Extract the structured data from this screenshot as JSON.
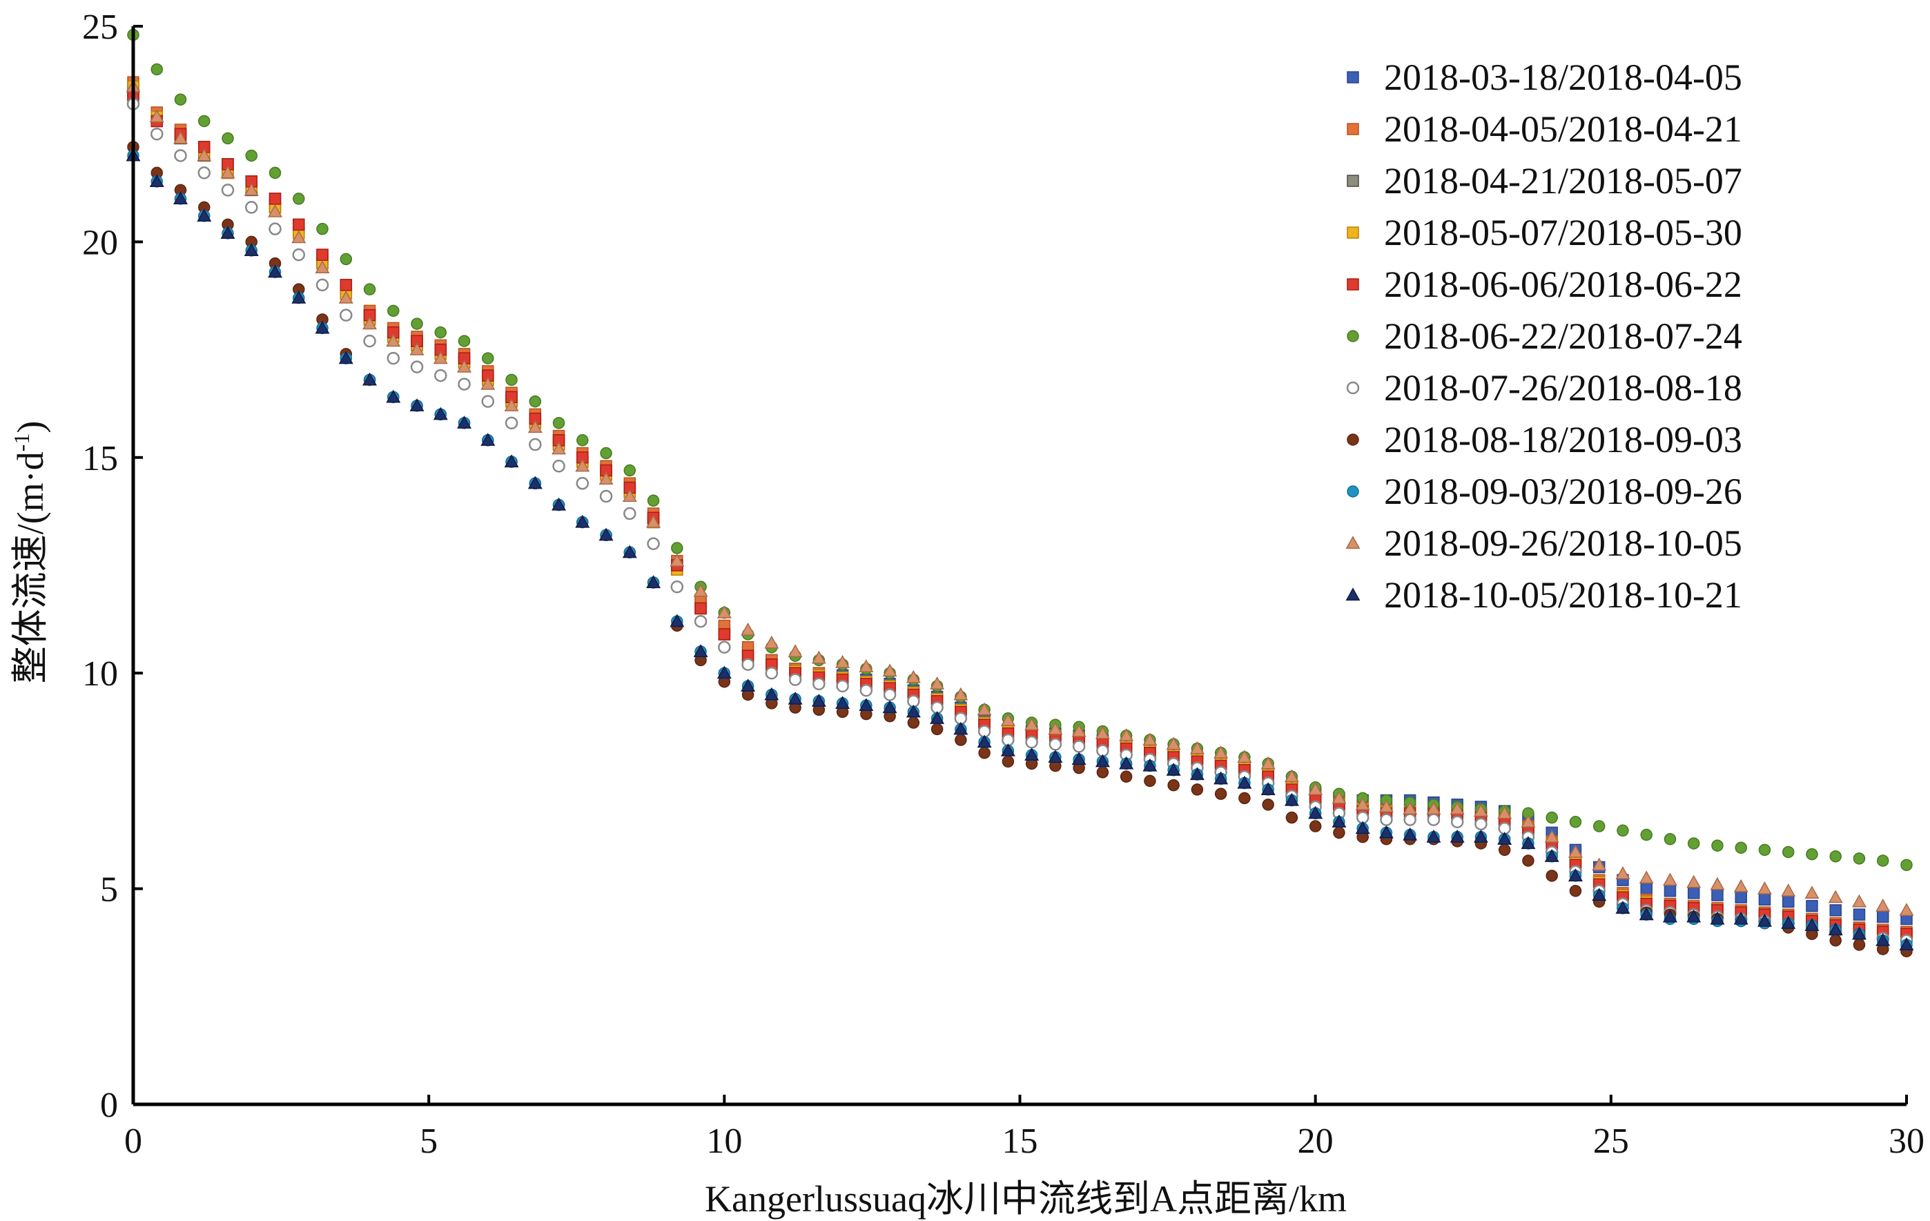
{
  "chart_data": {
    "type": "scatter",
    "title": "",
    "xlabel": "Kangerlussuaq冰川中流线到A点距离/km",
    "ylabel": "整体流速/(m·d-1)",
    "ylabel_parts": {
      "main": "整体流速/(m·d",
      "sup": "-1",
      "close": ")"
    },
    "xlim": [
      0,
      30
    ],
    "ylim": [
      0,
      25
    ],
    "x_ticks": [
      0,
      5,
      10,
      15,
      20,
      25,
      30
    ],
    "x_tick_labels": [
      "0",
      "5",
      "10",
      "15",
      "20",
      "25",
      "30"
    ],
    "y_ticks": [
      0,
      5,
      10,
      15,
      20,
      25
    ],
    "y_tick_labels": [
      "0",
      "5",
      "10",
      "15",
      "20",
      "25"
    ],
    "grid": false,
    "legend_position": "top-right",
    "x": [
      0,
      0.4,
      0.8,
      1.2,
      1.6,
      2,
      2.4,
      2.8,
      3.2,
      3.6,
      4,
      4.4,
      4.8,
      5.2,
      5.6,
      6,
      6.4,
      6.8,
      7.2,
      7.6,
      8,
      8.4,
      8.8,
      9.2,
      9.6,
      10,
      10.4,
      10.8,
      11.2,
      11.6,
      12,
      12.4,
      12.8,
      13.2,
      13.6,
      14,
      14.4,
      14.8,
      15.2,
      15.6,
      16,
      16.4,
      16.8,
      17.2,
      17.6,
      18,
      18.4,
      18.8,
      19.2,
      19.6,
      20,
      20.4,
      20.8,
      21.2,
      21.6,
      22,
      22.4,
      22.8,
      23.2,
      23.6,
      24,
      24.4,
      24.8,
      25.2,
      25.6,
      26,
      26.4,
      26.8,
      27.2,
      27.6,
      28,
      28.4,
      28.8,
      29.2,
      29.6,
      30
    ],
    "series": [
      {
        "name": "2018-03-18/2018-04-05",
        "marker": "square",
        "color": "#3b5fb4",
        "stroke": "#2a4590",
        "values": [
          23.5,
          22.9,
          22.5,
          22.2,
          21.8,
          21.4,
          20.9,
          20.3,
          19.6,
          18.9,
          18.3,
          17.9,
          17.7,
          17.5,
          17.3,
          16.9,
          16.4,
          15.9,
          15.4,
          15.0,
          14.7,
          14.3,
          13.6,
          12.5,
          11.6,
          11.0,
          10.5,
          10.3,
          10.1,
          10.0,
          9.95,
          9.85,
          9.75,
          9.6,
          9.45,
          9.2,
          8.9,
          8.7,
          8.65,
          8.6,
          8.55,
          8.45,
          8.35,
          8.25,
          8.15,
          8.05,
          7.95,
          7.85,
          7.7,
          7.4,
          7.2,
          7.1,
          7.05,
          7.05,
          7.05,
          7.0,
          6.95,
          6.9,
          6.8,
          6.6,
          6.3,
          5.9,
          5.5,
          5.2,
          5.0,
          4.95,
          4.9,
          4.85,
          4.8,
          4.75,
          4.7,
          4.6,
          4.5,
          4.4,
          4.35,
          4.3
        ]
      },
      {
        "name": "2018-04-05/2018-04-21",
        "marker": "square",
        "color": "#e2713a",
        "stroke": "#b85420",
        "values": [
          23.7,
          23.0,
          22.6,
          22.2,
          21.8,
          21.4,
          21.0,
          20.4,
          19.7,
          19.0,
          18.4,
          18.0,
          17.8,
          17.6,
          17.4,
          17.0,
          16.5,
          16.0,
          15.5,
          15.1,
          14.8,
          14.4,
          13.7,
          12.6,
          11.7,
          11.1,
          10.6,
          10.3,
          10.1,
          10.0,
          9.9,
          9.8,
          9.7,
          9.55,
          9.4,
          9.15,
          8.85,
          8.65,
          8.6,
          8.55,
          8.5,
          8.4,
          8.3,
          8.2,
          8.1,
          8.0,
          7.9,
          7.8,
          7.65,
          7.35,
          7.15,
          7.0,
          6.9,
          6.85,
          6.85,
          6.85,
          6.8,
          6.75,
          6.65,
          6.45,
          6.1,
          5.7,
          5.2,
          4.9,
          4.75,
          4.65,
          4.6,
          4.55,
          4.5,
          4.45,
          4.4,
          4.3,
          4.2,
          4.1,
          4.05,
          4.0
        ]
      },
      {
        "name": "2018-04-21/2018-05-07",
        "marker": "square",
        "color": "#8e8e80",
        "stroke": "#4a4a40",
        "values": [
          23.4,
          22.8,
          22.4,
          22.0,
          21.6,
          21.2,
          20.8,
          20.2,
          19.5,
          18.8,
          18.2,
          17.8,
          17.6,
          17.4,
          17.2,
          16.8,
          16.3,
          15.8,
          15.3,
          14.9,
          14.6,
          14.2,
          13.5,
          12.4,
          11.5,
          10.9,
          10.4,
          10.2,
          10.05,
          9.95,
          9.9,
          9.8,
          9.7,
          9.55,
          9.4,
          9.15,
          8.85,
          8.65,
          8.6,
          8.55,
          8.5,
          8.4,
          8.3,
          8.2,
          8.1,
          8.0,
          7.9,
          7.8,
          7.65,
          7.35,
          7.1,
          6.95,
          6.85,
          6.8,
          6.8,
          6.8,
          6.75,
          6.7,
          6.6,
          6.4,
          6.05,
          5.6,
          5.15,
          4.85,
          4.7,
          4.6,
          4.55,
          4.5,
          4.45,
          4.4,
          4.35,
          4.25,
          4.15,
          4.05,
          4.0,
          3.95
        ]
      },
      {
        "name": "2018-05-07/2018-05-30",
        "marker": "square",
        "color": "#f0b21e",
        "stroke": "#b8820a",
        "values": [
          23.6,
          22.9,
          22.5,
          22.1,
          21.6,
          21.3,
          20.8,
          20.2,
          19.5,
          18.8,
          18.2,
          17.8,
          17.6,
          17.4,
          17.2,
          16.8,
          16.3,
          15.8,
          15.3,
          14.9,
          14.6,
          14.2,
          13.5,
          12.4,
          11.5,
          10.9,
          10.4,
          10.2,
          10.05,
          9.95,
          9.9,
          9.8,
          9.7,
          9.55,
          9.4,
          9.15,
          8.85,
          8.65,
          8.6,
          8.55,
          8.5,
          8.4,
          8.3,
          8.2,
          8.1,
          8.0,
          7.9,
          7.8,
          7.65,
          7.35,
          7.1,
          6.95,
          6.85,
          6.8,
          6.8,
          6.8,
          6.75,
          6.7,
          6.6,
          6.4,
          6.05,
          5.6,
          5.15,
          4.85,
          4.7,
          4.6,
          4.55,
          4.5,
          4.45,
          4.4,
          4.35,
          4.25,
          4.15,
          4.05,
          4.0,
          3.95
        ]
      },
      {
        "name": "2018-06-06/2018-06-22",
        "marker": "square",
        "color": "#e03a2e",
        "stroke": "#a81f15",
        "values": [
          23.4,
          22.8,
          22.5,
          22.2,
          21.8,
          21.4,
          21.0,
          20.4,
          19.7,
          19.0,
          18.3,
          17.9,
          17.7,
          17.5,
          17.3,
          16.9,
          16.4,
          15.9,
          15.4,
          15.0,
          14.7,
          14.3,
          13.6,
          12.5,
          11.5,
          10.9,
          10.4,
          10.2,
          10.0,
          9.9,
          9.85,
          9.75,
          9.65,
          9.5,
          9.35,
          9.1,
          8.8,
          8.6,
          8.55,
          8.5,
          8.45,
          8.35,
          8.25,
          8.15,
          8.05,
          7.95,
          7.85,
          7.75,
          7.6,
          7.3,
          7.05,
          6.9,
          6.8,
          6.75,
          6.75,
          6.75,
          6.7,
          6.65,
          6.55,
          6.35,
          6.0,
          5.55,
          5.1,
          4.8,
          4.65,
          4.6,
          4.55,
          4.5,
          4.45,
          4.4,
          4.35,
          4.25,
          4.15,
          4.05,
          4.0,
          3.95
        ]
      },
      {
        "name": "2018-06-22/2018-07-24",
        "marker": "circle",
        "color": "#62a033",
        "stroke": "#477a20",
        "values": [
          24.8,
          24.0,
          23.3,
          22.8,
          22.4,
          22.0,
          21.6,
          21.0,
          20.3,
          19.6,
          18.9,
          18.4,
          18.1,
          17.9,
          17.7,
          17.3,
          16.8,
          16.3,
          15.8,
          15.4,
          15.1,
          14.7,
          14.0,
          12.9,
          12.0,
          11.4,
          10.9,
          10.6,
          10.4,
          10.3,
          10.2,
          10.1,
          10.0,
          9.85,
          9.7,
          9.45,
          9.15,
          8.95,
          8.85,
          8.8,
          8.75,
          8.65,
          8.55,
          8.45,
          8.35,
          8.25,
          8.15,
          8.05,
          7.9,
          7.6,
          7.35,
          7.2,
          7.1,
          7.05,
          7.0,
          6.95,
          6.9,
          6.85,
          6.8,
          6.75,
          6.65,
          6.55,
          6.45,
          6.35,
          6.25,
          6.15,
          6.05,
          6.0,
          5.95,
          5.9,
          5.85,
          5.8,
          5.75,
          5.7,
          5.65,
          5.55
        ]
      },
      {
        "name": "2018-07-26/2018-08-18",
        "marker": "circle-open",
        "color": "#ffffff",
        "stroke": "#888888",
        "values": [
          23.2,
          22.5,
          22.0,
          21.6,
          21.2,
          20.8,
          20.3,
          19.7,
          19.0,
          18.3,
          17.7,
          17.3,
          17.1,
          16.9,
          16.7,
          16.3,
          15.8,
          15.3,
          14.8,
          14.4,
          14.1,
          13.7,
          13.0,
          12.0,
          11.2,
          10.6,
          10.2,
          10.0,
          9.85,
          9.75,
          9.7,
          9.6,
          9.5,
          9.35,
          9.2,
          8.95,
          8.65,
          8.45,
          8.4,
          8.35,
          8.3,
          8.2,
          8.1,
          8.0,
          7.9,
          7.8,
          7.7,
          7.6,
          7.45,
          7.15,
          6.9,
          6.75,
          6.65,
          6.6,
          6.6,
          6.6,
          6.55,
          6.5,
          6.4,
          6.2,
          5.85,
          5.4,
          4.95,
          4.65,
          4.5,
          4.45,
          4.4,
          4.35,
          4.3,
          4.25,
          4.2,
          4.1,
          4.0,
          3.9,
          3.85,
          3.8
        ]
      },
      {
        "name": "2018-08-18/2018-09-03",
        "marker": "circle",
        "color": "#7a3418",
        "stroke": "#5a2410",
        "values": [
          22.2,
          21.6,
          21.2,
          20.8,
          20.4,
          20.0,
          19.5,
          18.9,
          18.2,
          17.4,
          16.8,
          16.4,
          16.2,
          16.0,
          15.8,
          15.4,
          14.9,
          14.4,
          13.9,
          13.5,
          13.2,
          12.8,
          12.1,
          11.1,
          10.3,
          9.8,
          9.5,
          9.3,
          9.2,
          9.15,
          9.1,
          9.05,
          9.0,
          8.85,
          8.7,
          8.45,
          8.15,
          7.95,
          7.9,
          7.85,
          7.8,
          7.7,
          7.6,
          7.5,
          7.4,
          7.3,
          7.2,
          7.1,
          6.95,
          6.65,
          6.45,
          6.3,
          6.2,
          6.15,
          6.15,
          6.15,
          6.1,
          6.05,
          5.9,
          5.65,
          5.3,
          4.95,
          4.7,
          4.55,
          4.45,
          4.4,
          4.35,
          4.3,
          4.25,
          4.2,
          4.1,
          3.95,
          3.8,
          3.7,
          3.6,
          3.55
        ]
      },
      {
        "name": "2018-09-03/2018-09-26",
        "marker": "circle",
        "color": "#2192c4",
        "stroke": "#15709a",
        "values": [
          22.0,
          21.4,
          21.0,
          20.6,
          20.2,
          19.8,
          19.3,
          18.7,
          18.0,
          17.3,
          16.8,
          16.4,
          16.2,
          16.0,
          15.8,
          15.4,
          14.9,
          14.4,
          13.9,
          13.5,
          13.2,
          12.8,
          12.1,
          11.2,
          10.5,
          10.0,
          9.7,
          9.5,
          9.4,
          9.35,
          9.3,
          9.25,
          9.2,
          9.1,
          8.95,
          8.7,
          8.4,
          8.2,
          8.1,
          8.05,
          8.0,
          7.95,
          7.9,
          7.85,
          7.75,
          7.65,
          7.55,
          7.45,
          7.3,
          7.05,
          6.75,
          6.55,
          6.4,
          6.3,
          6.25,
          6.2,
          6.2,
          6.2,
          6.15,
          6.05,
          5.75,
          5.3,
          4.85,
          4.55,
          4.4,
          4.3,
          4.3,
          4.25,
          4.25,
          4.2,
          4.2,
          4.15,
          4.05,
          3.95,
          3.8,
          3.7
        ]
      },
      {
        "name": "2018-09-26/2018-10-05",
        "marker": "triangle",
        "color": "#d98f68",
        "stroke": "#a86a48",
        "values": [
          23.6,
          22.9,
          22.4,
          22.0,
          21.6,
          21.2,
          20.7,
          20.1,
          19.4,
          18.7,
          18.1,
          17.7,
          17.5,
          17.3,
          17.1,
          16.7,
          16.2,
          15.7,
          15.2,
          14.8,
          14.5,
          14.1,
          13.5,
          12.6,
          11.9,
          11.4,
          11.0,
          10.7,
          10.5,
          10.35,
          10.25,
          10.15,
          10.05,
          9.9,
          9.75,
          9.5,
          9.15,
          8.9,
          8.8,
          8.7,
          8.65,
          8.6,
          8.55,
          8.45,
          8.35,
          8.25,
          8.15,
          8.05,
          7.9,
          7.6,
          7.3,
          7.1,
          6.95,
          6.9,
          6.85,
          6.85,
          6.85,
          6.8,
          6.75,
          6.55,
          6.2,
          5.85,
          5.55,
          5.35,
          5.25,
          5.2,
          5.15,
          5.1,
          5.05,
          5.0,
          4.95,
          4.9,
          4.8,
          4.7,
          4.6,
          4.5
        ]
      },
      {
        "name": "2018-10-05/2018-10-21",
        "marker": "triangle",
        "color": "#1c2f68",
        "stroke": "#0f1c48",
        "values": [
          22.0,
          21.4,
          21.0,
          20.6,
          20.2,
          19.8,
          19.3,
          18.7,
          18.0,
          17.3,
          16.8,
          16.4,
          16.2,
          16.0,
          15.8,
          15.4,
          14.9,
          14.4,
          13.9,
          13.5,
          13.2,
          12.8,
          12.1,
          11.2,
          10.5,
          10.0,
          9.7,
          9.5,
          9.4,
          9.35,
          9.3,
          9.25,
          9.2,
          9.1,
          8.95,
          8.7,
          8.4,
          8.2,
          8.1,
          8.05,
          8.0,
          7.95,
          7.9,
          7.85,
          7.75,
          7.65,
          7.55,
          7.45,
          7.3,
          7.05,
          6.75,
          6.55,
          6.4,
          6.3,
          6.25,
          6.2,
          6.2,
          6.2,
          6.15,
          6.05,
          5.75,
          5.3,
          4.85,
          4.55,
          4.4,
          4.35,
          4.35,
          4.3,
          4.3,
          4.25,
          4.2,
          4.15,
          4.05,
          3.95,
          3.8,
          3.7
        ]
      }
    ]
  }
}
